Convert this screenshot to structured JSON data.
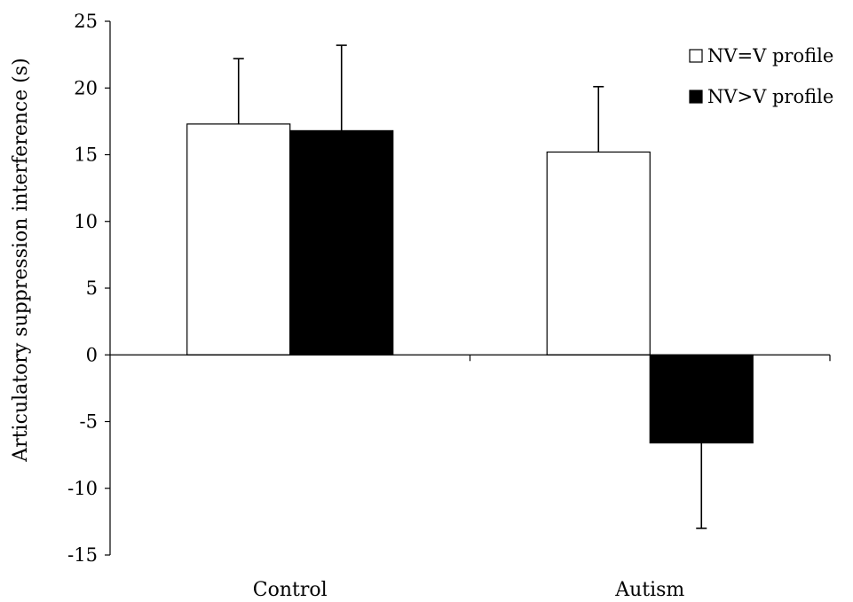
{
  "chart_data": {
    "type": "bar",
    "title": "",
    "xlabel": "",
    "ylabel": "Articulatory suppression interference (s)",
    "categories": [
      "Control",
      "Autism"
    ],
    "series": [
      {
        "name": "NV=V profile",
        "values": [
          17.3,
          15.2
        ],
        "error": [
          4.9,
          4.9
        ],
        "color": "#ffffff"
      },
      {
        "name": "NV>V profile",
        "values": [
          16.8,
          -6.6
        ],
        "error": [
          6.4,
          6.4
        ],
        "color": "#000000"
      }
    ],
    "ylim": [
      -15,
      25
    ],
    "yticks": [
      -15,
      -10,
      -5,
      0,
      5,
      10,
      15,
      20,
      25
    ],
    "grid": false,
    "legend_position": "top-right",
    "error_bars": true
  }
}
